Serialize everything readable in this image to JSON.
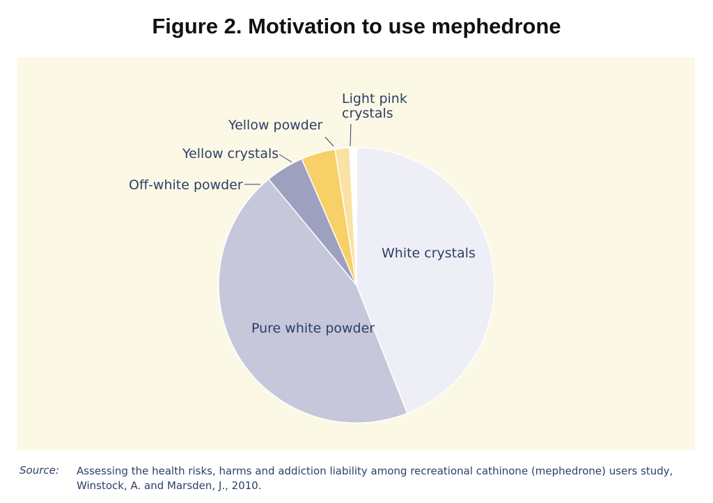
{
  "chart_data": {
    "type": "pie",
    "title": "Figure 2. Motivation to use mephedrone",
    "slices": [
      {
        "label": "White crystals",
        "value": 44,
        "color": "#eeeff6",
        "label_inside": true
      },
      {
        "label": "Pure white powder",
        "value": 45,
        "color": "#c6c7db",
        "label_inside": true
      },
      {
        "label": "Off-white powder",
        "value": 4.5,
        "color": "#9ea0bf",
        "label_inside": false
      },
      {
        "label": "Yellow crystals",
        "value": 4,
        "color": "#f7d068",
        "label_inside": false
      },
      {
        "label": "Yellow powder",
        "value": 1.7,
        "color": "#f9e2a2",
        "label_inside": false
      },
      {
        "label": "Light pink crystals",
        "value": 0.8,
        "color": "#ffffff",
        "label_inside": false
      }
    ],
    "outside_labels": {
      "off_white": "Off-white powder",
      "yellow_crystals": "Yellow crystals",
      "yellow_powder": "Yellow powder",
      "light_pink_line1": "Light pink",
      "light_pink_line2": "crystals"
    },
    "start_angle": "12 o'clock",
    "direction": "clockwise"
  },
  "source": {
    "label": "Source:",
    "text": "Assessing the health risks, harms and addiction liability among recreational cathinone (mephedrone) users study, Winstock, A. and Marsden, J., 2010."
  }
}
